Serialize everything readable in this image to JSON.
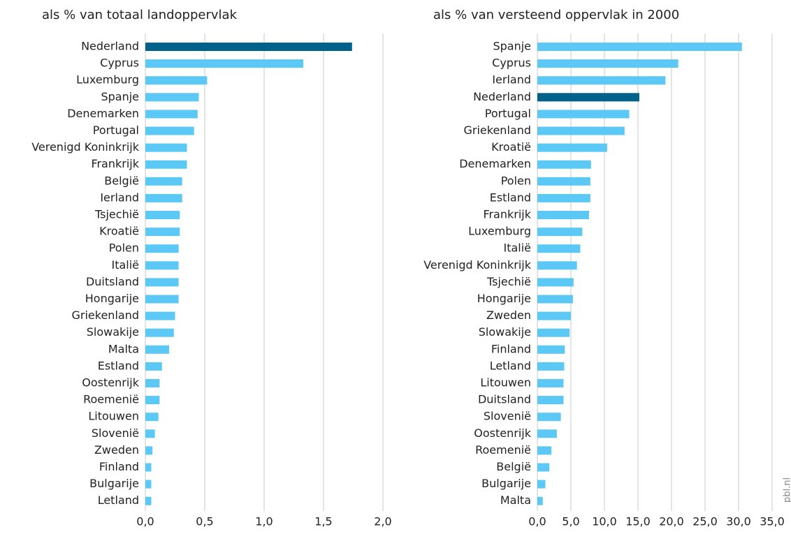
{
  "chart_data": [
    {
      "type": "barh",
      "title": "als % van totaal landoppervlak",
      "categories": [
        "Nederland",
        "Cyprus",
        "Luxemburg",
        "Spanje",
        "Denemarken",
        "Portugal",
        "Verenigd Koninkrijk",
        "Frankrijk",
        "België",
        "Ierland",
        "Tsjechië",
        "Kroatië",
        "Polen",
        "Italië",
        "Duitsland",
        "Hongarije",
        "Griekenland",
        "Slowakije",
        "Malta",
        "Estland",
        "Oostenrijk",
        "Roemenië",
        "Litouwen",
        "Slovenië",
        "Zweden",
        "Finland",
        "Bulgarije",
        "Letland"
      ],
      "values": [
        1.74,
        1.33,
        0.52,
        0.45,
        0.44,
        0.41,
        0.35,
        0.35,
        0.31,
        0.31,
        0.29,
        0.29,
        0.28,
        0.28,
        0.28,
        0.28,
        0.25,
        0.24,
        0.2,
        0.14,
        0.12,
        0.12,
        0.11,
        0.08,
        0.06,
        0.05,
        0.05,
        0.05
      ],
      "colors": [
        "#00618a",
        "#5bc8f5",
        "#5bc8f5",
        "#5bc8f5",
        "#5bc8f5",
        "#5bc8f5",
        "#5bc8f5",
        "#5bc8f5",
        "#5bc8f5",
        "#5bc8f5",
        "#5bc8f5",
        "#5bc8f5",
        "#5bc8f5",
        "#5bc8f5",
        "#5bc8f5",
        "#5bc8f5",
        "#5bc8f5",
        "#5bc8f5",
        "#5bc8f5",
        "#5bc8f5",
        "#5bc8f5",
        "#5bc8f5",
        "#5bc8f5",
        "#5bc8f5",
        "#5bc8f5",
        "#5bc8f5",
        "#5bc8f5",
        "#5bc8f5"
      ],
      "xlim": [
        0,
        2.0
      ],
      "xticks": [
        {
          "value": 0,
          "label": "0,0"
        },
        {
          "value": 0.5,
          "label": "0,5"
        },
        {
          "value": 1.0,
          "label": "1,0"
        },
        {
          "value": 1.5,
          "label": "1,5"
        },
        {
          "value": 2.0,
          "label": "2,0"
        }
      ],
      "grid": true
    },
    {
      "type": "barh",
      "title": "als % van versteend oppervlak in 2000",
      "categories": [
        "Spanje",
        "Cyprus",
        "Ierland",
        "Nederland",
        "Portugal",
        "Griekenland",
        "Kroatië",
        "Denemarken",
        "Polen",
        "Estland",
        "Frankrijk",
        "Luxemburg",
        "Italië",
        "Verenigd Koninkrijk",
        "Tsjechië",
        "Hongarije",
        "Zweden",
        "Slowakije",
        "Finland",
        "Letland",
        "Litouwen",
        "Duitsland",
        "Slovenië",
        "Oostenrijk",
        "Roemenië",
        "België",
        "Bulgarije",
        "Malta"
      ],
      "values": [
        30.5,
        21.0,
        19.1,
        15.2,
        13.7,
        13.0,
        10.4,
        8.0,
        7.9,
        7.9,
        7.7,
        6.7,
        6.4,
        5.9,
        5.4,
        5.3,
        5.0,
        4.8,
        4.1,
        4.0,
        3.9,
        3.9,
        3.5,
        2.9,
        2.1,
        1.8,
        1.2,
        0.8
      ],
      "colors": [
        "#5bc8f5",
        "#5bc8f5",
        "#5bc8f5",
        "#00618a",
        "#5bc8f5",
        "#5bc8f5",
        "#5bc8f5",
        "#5bc8f5",
        "#5bc8f5",
        "#5bc8f5",
        "#5bc8f5",
        "#5bc8f5",
        "#5bc8f5",
        "#5bc8f5",
        "#5bc8f5",
        "#5bc8f5",
        "#5bc8f5",
        "#5bc8f5",
        "#5bc8f5",
        "#5bc8f5",
        "#5bc8f5",
        "#5bc8f5",
        "#5bc8f5",
        "#5bc8f5",
        "#5bc8f5",
        "#5bc8f5",
        "#5bc8f5",
        "#5bc8f5"
      ],
      "xlim": [
        0,
        35.0
      ],
      "xticks": [
        {
          "value": 0,
          "label": "0,0"
        },
        {
          "value": 5,
          "label": "5,0"
        },
        {
          "value": 10,
          "label": "10,0"
        },
        {
          "value": 15,
          "label": "15,0"
        },
        {
          "value": 20,
          "label": "20,0"
        },
        {
          "value": 25,
          "label": "25,0"
        },
        {
          "value": 30,
          "label": "30,0"
        },
        {
          "value": 35,
          "label": "35,0"
        }
      ],
      "grid": true
    }
  ],
  "source": "pbl.nl"
}
